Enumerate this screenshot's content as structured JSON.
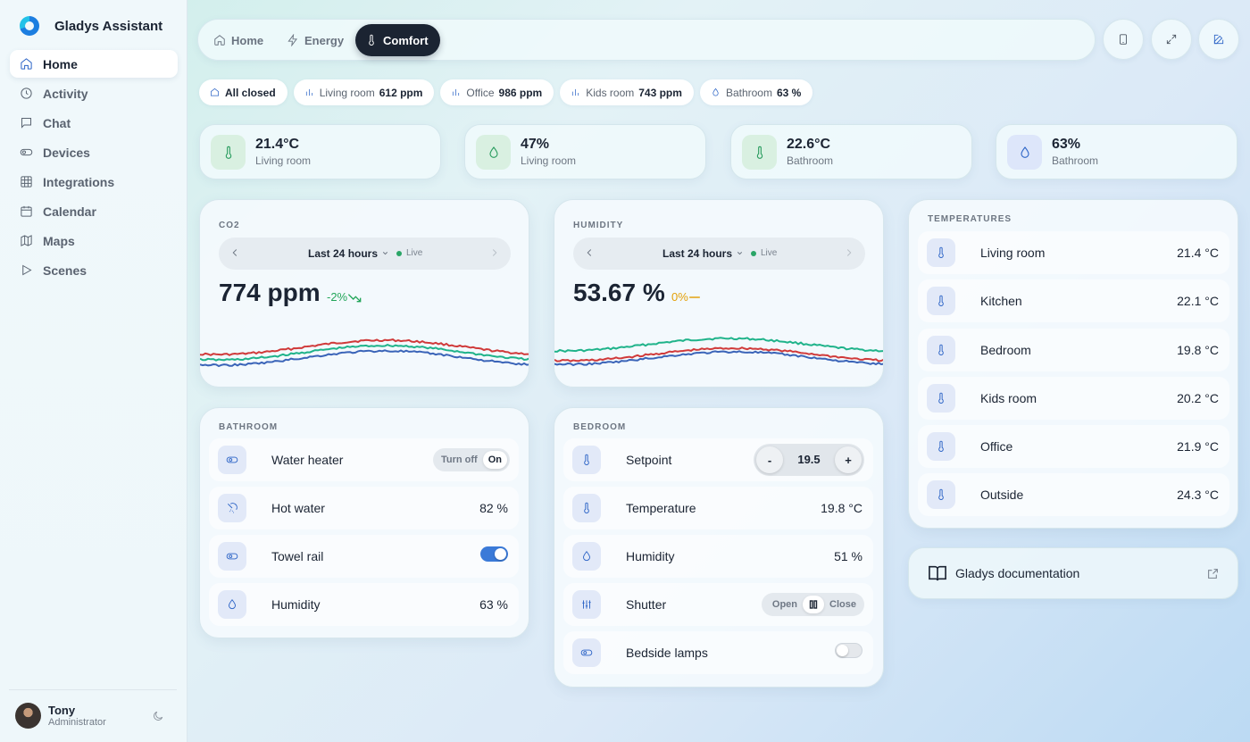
{
  "app": {
    "name": "Gladys Assistant"
  },
  "sidebar": {
    "items": [
      {
        "label": "Home",
        "icon": "home-icon",
        "active": true
      },
      {
        "label": "Activity",
        "icon": "clock-icon"
      },
      {
        "label": "Chat",
        "icon": "chat-icon"
      },
      {
        "label": "Devices",
        "icon": "toggle-icon"
      },
      {
        "label": "Integrations",
        "icon": "grid-icon"
      },
      {
        "label": "Calendar",
        "icon": "calendar-icon"
      },
      {
        "label": "Maps",
        "icon": "map-icon"
      },
      {
        "label": "Scenes",
        "icon": "play-icon"
      }
    ],
    "user": {
      "name": "Tony",
      "role": "Administrator"
    }
  },
  "topbar": {
    "tabs": [
      {
        "label": "Home",
        "icon": "home-icon"
      },
      {
        "label": "Energy",
        "icon": "bolt-icon"
      },
      {
        "label": "Comfort",
        "icon": "thermometer-icon",
        "active": true
      }
    ],
    "actions": [
      "tablet-icon",
      "expand-icon",
      "edit-icon"
    ]
  },
  "chips": [
    {
      "label": "All closed",
      "value": "",
      "icon": "home-icon"
    },
    {
      "label": "Living room",
      "value": "612 ppm",
      "icon": "bar-chart-icon"
    },
    {
      "label": "Office",
      "value": "986 ppm",
      "icon": "bar-chart-icon"
    },
    {
      "label": "Kids room",
      "value": "743 ppm",
      "icon": "bar-chart-icon"
    },
    {
      "label": "Bathroom",
      "value": "63 %",
      "icon": "droplet-icon"
    }
  ],
  "stats": [
    {
      "value": "21.4°C",
      "label": "Living room",
      "icon": "thermometer-icon",
      "tone": "green"
    },
    {
      "value": "47%",
      "label": "Living room",
      "icon": "droplet-icon",
      "tone": "green"
    },
    {
      "value": "22.6°C",
      "label": "Bathroom",
      "icon": "thermometer-icon",
      "tone": "green"
    },
    {
      "value": "63%",
      "label": "Bathroom",
      "icon": "droplet-icon",
      "tone": "blue"
    }
  ],
  "co2": {
    "title": "CO2",
    "range": "Last 24 hours",
    "live": "Live",
    "value": "774 ppm",
    "trend": "-2%",
    "trend_color": "#22a559"
  },
  "humidity": {
    "title": "HUMIDITY",
    "range": "Last 24 hours",
    "live": "Live",
    "value": "53.67 %",
    "trend": "0%",
    "trend_color": "#e3a008"
  },
  "bathroom": {
    "title": "BATHROOM",
    "water_heater": {
      "label": "Water heater",
      "off": "Turn off",
      "on": "On"
    },
    "hot_water": {
      "label": "Hot water",
      "value": "82 %"
    },
    "towel_rail": {
      "label": "Towel rail",
      "state": true
    },
    "humidity": {
      "label": "Humidity",
      "value": "63 %"
    }
  },
  "bedroom": {
    "title": "BEDROOM",
    "setpoint": {
      "label": "Setpoint",
      "value": "19.5",
      "minus": "-",
      "plus": "+"
    },
    "temperature": {
      "label": "Temperature",
      "value": "19.8 °C"
    },
    "humidity": {
      "label": "Humidity",
      "value": "51 %"
    },
    "shutter": {
      "label": "Shutter",
      "open": "Open",
      "close": "Close"
    },
    "lamps": {
      "label": "Bedside lamps",
      "state": false
    }
  },
  "temperatures": {
    "title": "TEMPERATURES",
    "rows": [
      {
        "label": "Living room",
        "value": "21.4 °C"
      },
      {
        "label": "Kitchen",
        "value": "22.1 °C"
      },
      {
        "label": "Bedroom",
        "value": "19.8 °C"
      },
      {
        "label": "Kids room",
        "value": "20.2 °C"
      },
      {
        "label": "Office",
        "value": "21.9 °C"
      },
      {
        "label": "Outside",
        "value": "24.3 °C"
      }
    ]
  },
  "documentation": {
    "label": "Gladys documentation"
  },
  "colors": {
    "accent": "#2b63c6",
    "dark": "#1b2432",
    "series_red": "#d03a3a",
    "series_green": "#1fb38a",
    "series_blue": "#3a64b8"
  }
}
